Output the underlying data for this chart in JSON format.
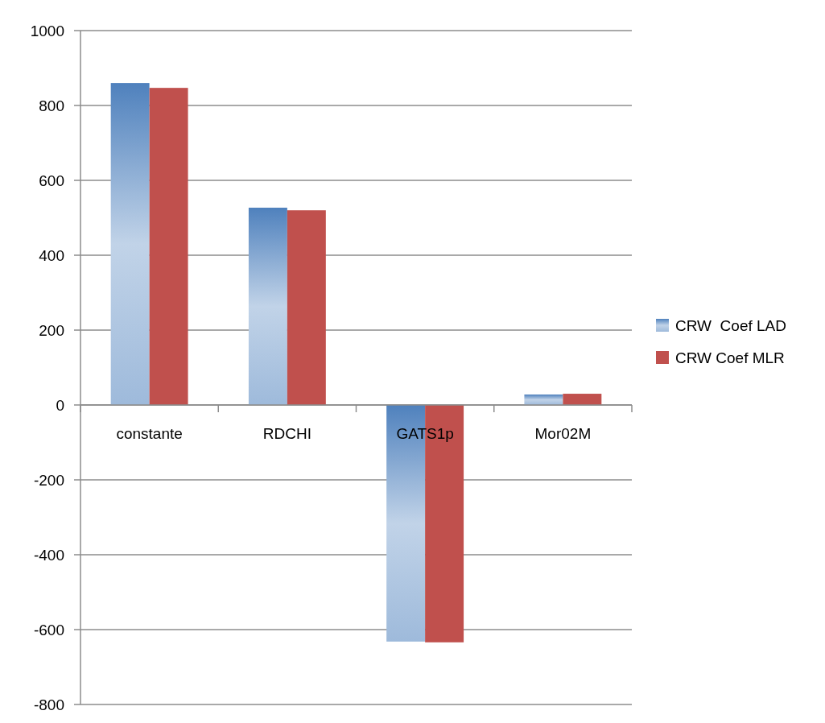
{
  "chart_data": {
    "type": "bar",
    "categories": [
      "constante",
      "RDCHI",
      "GATS1p",
      "Mor02M"
    ],
    "series": [
      {
        "name": "CRW  Coef LAD",
        "color": "#4f81bd",
        "values": [
          860,
          527,
          -632,
          28
        ]
      },
      {
        "name": "CRW Coef MLR",
        "color": "#c0504d",
        "values": [
          847,
          520,
          -634,
          30
        ]
      }
    ],
    "ylim": [
      -800,
      1000
    ],
    "yticks": [
      -800,
      -600,
      -400,
      -200,
      0,
      200,
      400,
      600,
      800,
      1000
    ],
    "grid": "y",
    "legend": "right"
  }
}
